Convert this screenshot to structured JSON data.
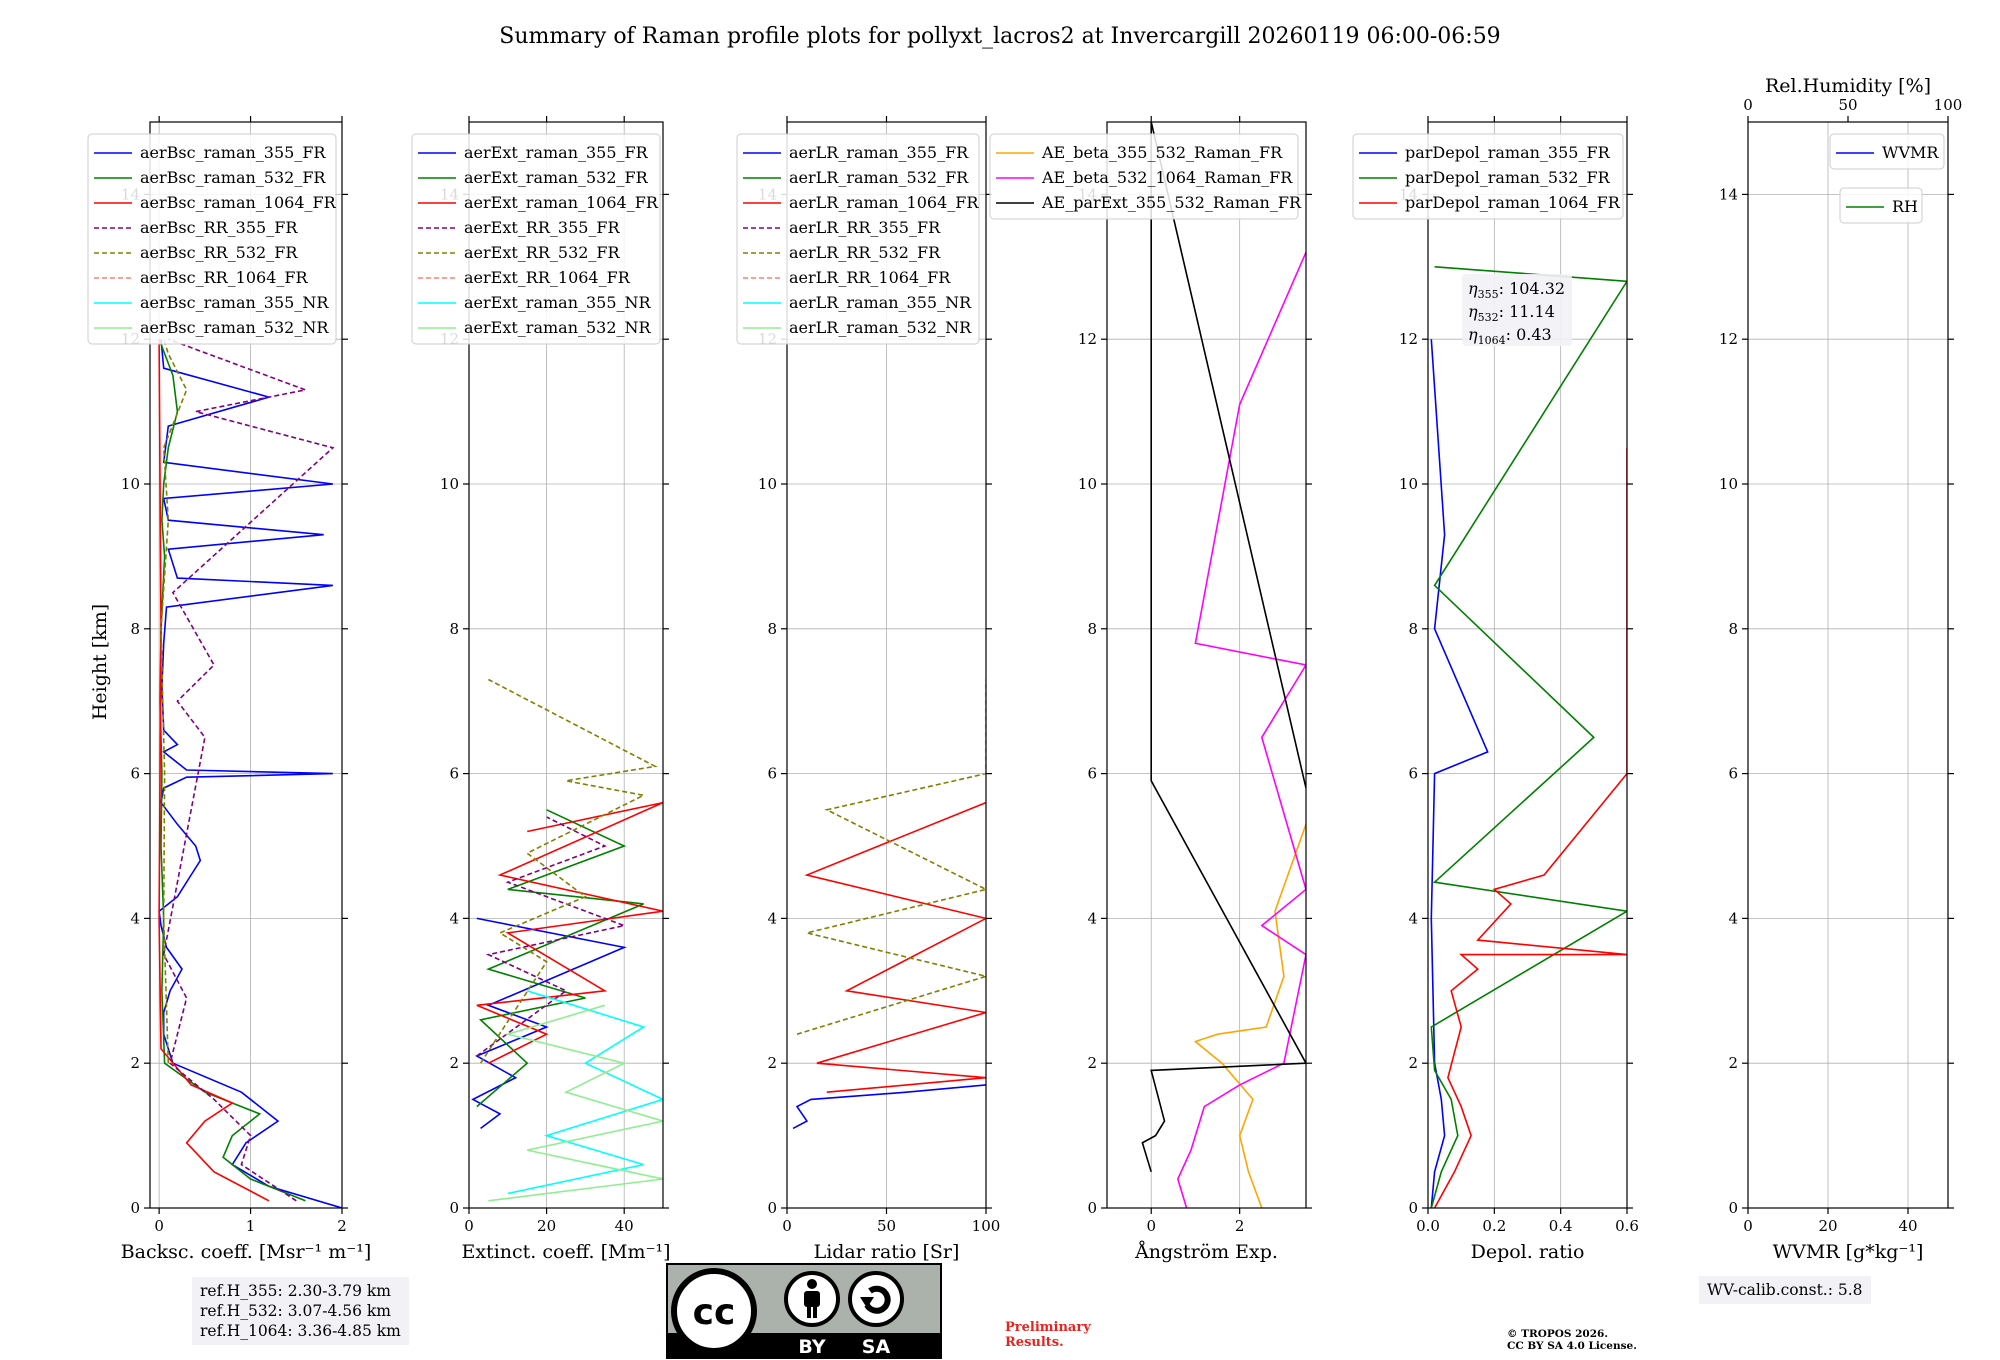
{
  "title": "Summary of Raman profile plots for pollyxt_lacros2 at Invercargill 20260119 06:00-06:59",
  "y_axis_label": "Height [km]",
  "colors": {
    "blue": "#0000ff",
    "green": "#008000",
    "red": "#ff0000",
    "purple": "#800080",
    "olive": "#808000",
    "salmon": "#fa8072",
    "cyan": "#00ffff",
    "lightgreen": "#90ee90",
    "orange": "#ffa500",
    "magenta": "#ff00ff",
    "black": "#000000"
  },
  "chart_data": [
    {
      "id": "backscatter",
      "type": "line",
      "xlabel": "Backsc. coeff. [Msr⁻¹ m⁻¹]",
      "ylabel": "Height [km]",
      "xlim": [
        -0.1,
        2
      ],
      "ylim": [
        0,
        15
      ],
      "xticks": [
        0,
        1,
        2
      ],
      "yticks": [
        0,
        2,
        4,
        6,
        8,
        10,
        12,
        14
      ],
      "legend": [
        {
          "name": "aerBsc_raman_355_FR",
          "color": "blue",
          "dash": false
        },
        {
          "name": "aerBsc_raman_532_FR",
          "color": "green",
          "dash": false
        },
        {
          "name": "aerBsc_raman_1064_FR",
          "color": "red",
          "dash": false
        },
        {
          "name": "aerBsc_RR_355_FR",
          "color": "purple",
          "dash": true
        },
        {
          "name": "aerBsc_RR_532_FR",
          "color": "olive",
          "dash": true
        },
        {
          "name": "aerBsc_RR_1064_FR",
          "color": "salmon",
          "dash": true
        },
        {
          "name": "aerBsc_raman_355_NR",
          "color": "cyan",
          "dash": false
        },
        {
          "name": "aerBsc_raman_532_NR",
          "color": "lightgreen",
          "dash": false
        }
      ],
      "series": [
        {
          "name": "aerBsc_raman_355_FR",
          "color": "blue",
          "dash": false,
          "x": [
            2.0,
            1.2,
            0.8,
            0.95,
            1.3,
            0.9,
            0.15,
            0.05,
            0.05,
            0.12,
            0.25,
            0.08,
            0.02,
            0.0,
            0.2,
            0.35,
            0.45,
            0.4,
            0.2,
            0.02,
            0.05,
            0.3,
            1.9,
            0.3,
            0.05,
            0.2,
            0.05,
            0.03,
            0.05,
            0.08,
            1.9,
            0.2,
            0.1,
            1.8,
            0.1,
            0.05,
            1.9,
            0.05,
            0.1,
            1.2,
            0.05,
            0.02
          ],
          "y": [
            0.0,
            0.3,
            0.6,
            0.9,
            1.2,
            1.6,
            2.0,
            2.4,
            2.7,
            3.0,
            3.3,
            3.6,
            3.9,
            4.1,
            4.3,
            4.6,
            4.8,
            5.0,
            5.3,
            5.6,
            5.8,
            5.95,
            6.0,
            6.05,
            6.3,
            6.4,
            6.6,
            7.2,
            7.8,
            8.3,
            8.6,
            8.7,
            9.1,
            9.3,
            9.5,
            9.8,
            10.0,
            10.3,
            10.8,
            11.2,
            11.6,
            12.0
          ]
        },
        {
          "name": "aerBsc_raman_532_FR",
          "color": "green",
          "dash": false,
          "x": [
            1.6,
            1.0,
            0.7,
            0.8,
            1.1,
            0.5,
            0.06,
            0.03,
            0.05,
            0.02,
            0.03,
            0.01,
            0.02,
            0.06,
            0.03,
            0.05,
            0.1,
            0.2,
            0.15,
            0.0
          ],
          "y": [
            0.1,
            0.4,
            0.7,
            1.0,
            1.3,
            1.6,
            2.0,
            3.0,
            4.0,
            5.0,
            6.0,
            7.0,
            8.0,
            9.0,
            9.5,
            10.0,
            10.5,
            11.0,
            11.5,
            12.0
          ]
        },
        {
          "name": "aerBsc_raman_1064_FR",
          "color": "red",
          "dash": false,
          "x": [
            1.2,
            0.6,
            0.3,
            0.5,
            0.8,
            0.35,
            0.02,
            0.0,
            0.02,
            0.0
          ],
          "y": [
            0.1,
            0.5,
            0.9,
            1.2,
            1.45,
            1.7,
            2.2,
            4.0,
            8.0,
            12.0
          ]
        },
        {
          "name": "aerBsc_RR_355_FR",
          "color": "purple",
          "dash": true,
          "x": [
            1.5,
            0.9,
            1.0,
            0.6,
            0.12,
            0.3,
            0.05,
            0.5,
            0.2,
            0.6,
            0.15,
            1.9,
            0.4,
            1.6,
            0.1
          ],
          "y": [
            0.1,
            0.6,
            1.0,
            1.5,
            2.0,
            2.9,
            3.5,
            6.5,
            7.0,
            7.5,
            8.5,
            10.5,
            11.0,
            11.3,
            12.0
          ]
        },
        {
          "name": "aerBsc_RR_532_FR",
          "color": "olive",
          "dash": true,
          "x": [
            0.1,
            0.05,
            0.06,
            0.02,
            0.1,
            0.05,
            0.3,
            0.1,
            0.05
          ],
          "y": [
            2.0,
            4.0,
            6.0,
            8.0,
            9.5,
            10.5,
            11.3,
            11.8,
            12.0
          ]
        }
      ]
    },
    {
      "id": "extinction",
      "type": "line",
      "xlabel": "Extinct. coeff. [Mm⁻¹]",
      "xlim": [
        0,
        50
      ],
      "ylim": [
        0,
        15
      ],
      "xticks": [
        0,
        20,
        40
      ],
      "yticks": [
        0,
        2,
        4,
        6,
        8,
        10,
        12,
        14
      ],
      "legend": [
        {
          "name": "aerExt_raman_355_FR",
          "color": "blue",
          "dash": false
        },
        {
          "name": "aerExt_raman_532_FR",
          "color": "green",
          "dash": false
        },
        {
          "name": "aerExt_raman_1064_FR",
          "color": "red",
          "dash": false
        },
        {
          "name": "aerExt_RR_355_FR",
          "color": "purple",
          "dash": true
        },
        {
          "name": "aerExt_RR_532_FR",
          "color": "olive",
          "dash": true
        },
        {
          "name": "aerExt_RR_1064_FR",
          "color": "salmon",
          "dash": true
        },
        {
          "name": "aerExt_raman_355_NR",
          "color": "cyan",
          "dash": false
        },
        {
          "name": "aerExt_raman_532_NR",
          "color": "lightgreen",
          "dash": false
        }
      ],
      "series": [
        {
          "name": "aerExt_raman_355_FR",
          "color": "blue",
          "dash": false,
          "x": [
            3,
            8,
            1,
            12,
            2,
            20,
            5,
            40,
            2
          ],
          "y": [
            1.1,
            1.3,
            1.5,
            1.8,
            2.1,
            2.5,
            2.8,
            3.6,
            4.0
          ]
        },
        {
          "name": "aerExt_raman_532_FR",
          "color": "green",
          "dash": false,
          "x": [
            2,
            15,
            3,
            30,
            5,
            45,
            10,
            40,
            20
          ],
          "y": [
            1.4,
            2.0,
            2.6,
            2.9,
            3.3,
            4.2,
            4.4,
            5.0,
            5.5
          ]
        },
        {
          "name": "aerExt_raman_1064_FR",
          "color": "red",
          "dash": false,
          "x": [
            5,
            20,
            2,
            35,
            10,
            50,
            8,
            50,
            15
          ],
          "y": [
            2.0,
            2.4,
            2.8,
            3.0,
            3.8,
            4.1,
            4.6,
            5.6,
            5.2
          ]
        },
        {
          "name": "aerExt_RR_355_FR",
          "color": "purple",
          "dash": true,
          "x": [
            2,
            25,
            5,
            40,
            10,
            35,
            20
          ],
          "y": [
            2.1,
            3.0,
            3.5,
            3.9,
            4.5,
            5.0,
            5.4
          ]
        },
        {
          "name": "aerExt_RR_532_FR",
          "color": "olive",
          "dash": true,
          "x": [
            3,
            20,
            8,
            30,
            15,
            45,
            25,
            48,
            5
          ],
          "y": [
            2.0,
            3.4,
            3.8,
            4.3,
            4.9,
            5.7,
            5.9,
            6.1,
            7.3
          ]
        },
        {
          "name": "aerExt_raman_355_NR",
          "color": "cyan",
          "dash": false,
          "x": [
            10,
            45,
            20,
            50,
            30,
            45,
            15
          ],
          "y": [
            0.2,
            0.6,
            1.0,
            1.5,
            2.0,
            2.5,
            3.0
          ]
        },
        {
          "name": "aerExt_raman_532_NR",
          "color": "lightgreen",
          "dash": false,
          "x": [
            5,
            50,
            15,
            50,
            25,
            40,
            10,
            35
          ],
          "y": [
            0.1,
            0.4,
            0.8,
            1.2,
            1.6,
            2.0,
            2.4,
            2.8
          ]
        }
      ]
    },
    {
      "id": "lidar_ratio",
      "type": "line",
      "xlabel": "Lidar ratio [Sr]",
      "xlim": [
        0,
        100
      ],
      "ylim": [
        0,
        15
      ],
      "xticks": [
        0,
        50,
        100
      ],
      "yticks": [
        0,
        2,
        4,
        6,
        8,
        10,
        12,
        14
      ],
      "legend": [
        {
          "name": "aerLR_raman_355_FR",
          "color": "blue",
          "dash": false
        },
        {
          "name": "aerLR_raman_532_FR",
          "color": "green",
          "dash": false
        },
        {
          "name": "aerLR_raman_1064_FR",
          "color": "red",
          "dash": false
        },
        {
          "name": "aerLR_RR_355_FR",
          "color": "purple",
          "dash": true
        },
        {
          "name": "aerLR_RR_532_FR",
          "color": "olive",
          "dash": true
        },
        {
          "name": "aerLR_RR_1064_FR",
          "color": "salmon",
          "dash": true
        },
        {
          "name": "aerLR_raman_355_NR",
          "color": "cyan",
          "dash": false
        },
        {
          "name": "aerLR_raman_532_NR",
          "color": "lightgreen",
          "dash": false
        }
      ],
      "series": [
        {
          "name": "aerLR_raman_355_FR",
          "color": "blue",
          "dash": false,
          "x": [
            3,
            10,
            5,
            12,
            60,
            100
          ],
          "y": [
            1.1,
            1.2,
            1.4,
            1.5,
            1.6,
            1.7
          ]
        },
        {
          "name": "aerLR_raman_1064_FR",
          "color": "red",
          "dash": false,
          "x": [
            20,
            100,
            15,
            100,
            30,
            100,
            10,
            100
          ],
          "y": [
            1.6,
            1.8,
            2.0,
            2.7,
            3.0,
            4.0,
            4.6,
            5.6
          ]
        },
        {
          "name": "aerLR_RR_532_FR",
          "color": "olive",
          "dash": true,
          "x": [
            5,
            100,
            10,
            100,
            20,
            100,
            100
          ],
          "y": [
            2.4,
            3.2,
            3.8,
            4.4,
            5.5,
            6.0,
            7.3
          ]
        }
      ]
    },
    {
      "id": "angstrom",
      "type": "line",
      "xlabel": "Ångström Exp.",
      "xlim": [
        -1,
        3.5
      ],
      "ylim": [
        0,
        15
      ],
      "xticks": [
        0,
        2
      ],
      "yticks": [
        0,
        2,
        4,
        6,
        8,
        10,
        12,
        14
      ],
      "legend": [
        {
          "name": "AE_beta_355_532_Raman_FR",
          "color": "orange",
          "dash": false
        },
        {
          "name": "AE_beta_532_1064_Raman_FR",
          "color": "magenta",
          "dash": false
        },
        {
          "name": "AE_parExt_355_532_Raman_FR",
          "color": "black",
          "dash": false
        }
      ],
      "series": [
        {
          "name": "AE_beta_355_532_Raman_FR",
          "color": "orange",
          "dash": false,
          "x": [
            2.5,
            2.2,
            2.0,
            2.3,
            1.6,
            1.0,
            1.5,
            2.6,
            3.0,
            2.8,
            3.5
          ],
          "y": [
            0.0,
            0.5,
            1.0,
            1.5,
            2.0,
            2.3,
            2.4,
            2.5,
            3.2,
            4.1,
            5.3
          ]
        },
        {
          "name": "AE_beta_532_1064_Raman_FR",
          "color": "magenta",
          "dash": false,
          "x": [
            0.8,
            0.6,
            0.9,
            1.2,
            2.0,
            3.0,
            3.5,
            2.5,
            3.5,
            2.5,
            3.5,
            1.0,
            2.0,
            3.5
          ],
          "y": [
            0.0,
            0.4,
            0.8,
            1.4,
            1.7,
            2.0,
            3.5,
            3.9,
            4.4,
            6.5,
            7.5,
            7.8,
            11.1,
            13.2
          ]
        },
        {
          "name": "AE_parExt_355_532_Raman_FR",
          "color": "black",
          "dash": false,
          "x": [
            0.0,
            -0.2,
            0.1,
            0.3,
            0.0,
            3.5,
            0.0,
            0.0,
            3.5
          ],
          "y": [
            0.5,
            0.9,
            1.0,
            1.2,
            1.9,
            2.0,
            5.9,
            15.0,
            5.8
          ]
        }
      ]
    },
    {
      "id": "depol",
      "type": "line",
      "xlabel": "Depol. ratio",
      "xlim": [
        0,
        0.6
      ],
      "ylim": [
        0,
        15
      ],
      "xticks": [
        0.0,
        0.2,
        0.4,
        0.6
      ],
      "xtick_labels": [
        "0.0",
        "0.2",
        "0.4",
        "0.6"
      ],
      "yticks": [
        0,
        2,
        4,
        6,
        8,
        10,
        12,
        14
      ],
      "legend": [
        {
          "name": "parDepol_raman_355_FR",
          "color": "blue",
          "dash": false
        },
        {
          "name": "parDepol_raman_532_FR",
          "color": "green",
          "dash": false
        },
        {
          "name": "parDepol_raman_1064_FR",
          "color": "red",
          "dash": false
        }
      ],
      "annotation": [
        {
          "symbol": "η",
          "sub": "355",
          "text": ": 104.32"
        },
        {
          "symbol": "η",
          "sub": "532",
          "text": ": 11.14"
        },
        {
          "symbol": "η",
          "sub": "1064",
          "text": ": 0.43"
        }
      ],
      "series": [
        {
          "name": "parDepol_raman_355_FR",
          "color": "blue",
          "dash": false,
          "x": [
            0.01,
            0.02,
            0.05,
            0.04,
            0.02,
            0.01,
            0.02,
            0.18,
            0.02,
            0.05,
            0.01
          ],
          "y": [
            0.0,
            0.5,
            1.0,
            1.5,
            2.0,
            4.0,
            6.0,
            6.3,
            8.0,
            9.3,
            12.0
          ]
        },
        {
          "name": "parDepol_raman_532_FR",
          "color": "green",
          "dash": false,
          "x": [
            0.01,
            0.04,
            0.09,
            0.07,
            0.02,
            0.01,
            0.6,
            0.02,
            0.5,
            0.02,
            0.6,
            0.02
          ],
          "y": [
            0.0,
            0.5,
            1.0,
            1.5,
            1.9,
            2.5,
            4.1,
            4.5,
            6.5,
            8.6,
            12.8,
            13.0
          ]
        },
        {
          "name": "parDepol_raman_1064_FR",
          "color": "red",
          "dash": false,
          "x": [
            0.02,
            0.08,
            0.13,
            0.1,
            0.06,
            0.1,
            0.07,
            0.15,
            0.1,
            0.6,
            0.15,
            0.25,
            0.2,
            0.35,
            0.6,
            0.6
          ],
          "y": [
            0.0,
            0.5,
            1.0,
            1.4,
            1.8,
            2.5,
            3.0,
            3.3,
            3.5,
            3.5,
            3.7,
            4.2,
            4.4,
            4.6,
            6.0,
            10.5
          ]
        }
      ]
    },
    {
      "id": "wvmr",
      "type": "line",
      "xlabel": "WVMR [g*kg⁻¹]",
      "top_xlabel": "Rel.Humidity [%]",
      "xlim": [
        0,
        50
      ],
      "ylim": [
        0,
        15
      ],
      "xticks": [
        0,
        20,
        40
      ],
      "top_xlim": [
        0,
        100
      ],
      "top_xticks": [
        0,
        50,
        100
      ],
      "yticks": [
        0,
        2,
        4,
        6,
        8,
        10,
        12,
        14
      ],
      "legend": [
        {
          "name": "WVMR",
          "color": "blue",
          "dash": false
        }
      ],
      "legend2": [
        {
          "name": "RH",
          "color": "green",
          "dash": false
        }
      ],
      "series": []
    }
  ],
  "notes": {
    "ref_heights": [
      "ref.H_355: 2.30-3.79 km",
      "ref.H_532: 3.07-4.56 km",
      "ref.H_1064: 3.36-4.85 km"
    ],
    "wv_calib": "WV-calib.const.: 5.8",
    "preliminary": [
      "Preliminary",
      "Results."
    ],
    "copyright": [
      "© TROPOS 2026.",
      "CC BY SA 4.0 License."
    ],
    "license_badge": {
      "left": "BY",
      "right": "SA"
    }
  }
}
